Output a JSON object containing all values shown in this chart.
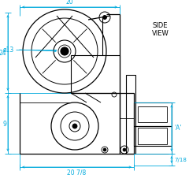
{
  "bg_color": "#ffffff",
  "line_color": "#000000",
  "dim_color": "#00aadd",
  "title_line1": "SIDE",
  "title_line2": "VIEW",
  "dim_20_top": "20",
  "dim_phi13": "ø13",
  "dim_24": "24",
  "dim_9": "9",
  "dim_20_7_8": "20 7/8",
  "dim_7_18": "7/18",
  "dim_A": "'A'"
}
